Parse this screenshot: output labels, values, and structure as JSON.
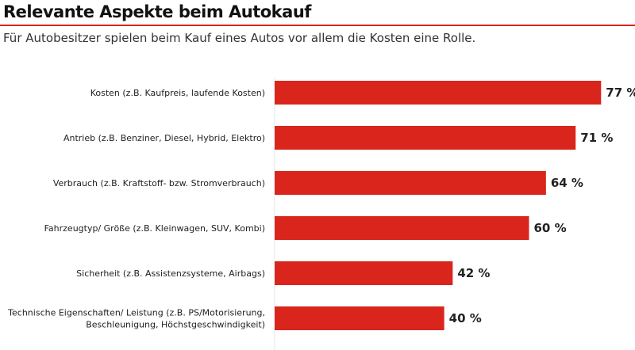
{
  "chart_data": {
    "type": "bar",
    "orientation": "horizontal",
    "title": "Relevante Aspekte beim Autokauf",
    "subtitle": "Für Autobesitzer spielen beim Kauf eines Autos vor allem die Kosten eine Rolle.",
    "categories": [
      [
        "Kosten (z.B. Kaufpreis, laufende Kosten)"
      ],
      [
        "Antrieb (z.B. Benziner, Diesel, Hybrid, Elektro)"
      ],
      [
        "Verbrauch (z.B. Kraftstoff- bzw. Stromverbrauch)"
      ],
      [
        "Fahrzeugtyp/ Größe (z.B. Kleinwagen, SUV, Kombi)"
      ],
      [
        "Sicherheit (z.B. Assistenzsysteme, Airbags)"
      ],
      [
        "Technische Eigenschaften/ Leistung (z.B. PS/Motorisierung,",
        "Beschleunigung, Höchstgeschwindigkeit)"
      ]
    ],
    "values": [
      77,
      71,
      64,
      60,
      42,
      40
    ],
    "value_labels": [
      "77 %",
      "71 %",
      "64 %",
      "60 %",
      "42 %",
      "40 %"
    ],
    "unit": "%",
    "xlim": [
      0,
      85
    ],
    "grid": false,
    "bar_color": "#d9251c",
    "accent_color": "#d9251c"
  }
}
